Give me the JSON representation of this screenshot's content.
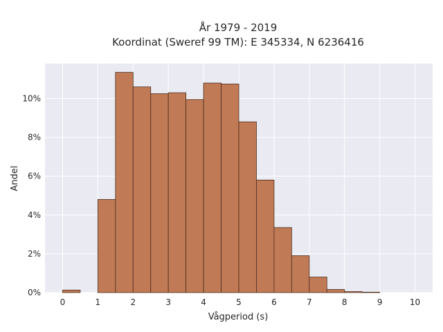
{
  "chart_data": {
    "type": "bar",
    "title_lines": [
      "År 1979 - 2019",
      "Koordinat (Sweref 99 TM): E 345334, N 6236416"
    ],
    "xlabel": "Vågperiod (s)",
    "ylabel": "Andel",
    "xlim": [
      -0.5,
      10.5
    ],
    "ylim": [
      0,
      11.8
    ],
    "x_ticks": [
      "0",
      "1",
      "2",
      "3",
      "4",
      "5",
      "6",
      "7",
      "8",
      "9",
      "10"
    ],
    "y_ticks": [
      "0%",
      "2%",
      "4%",
      "6%",
      "8%",
      "10%"
    ],
    "bin_width": 0.5,
    "bins": [
      {
        "start": 0.0,
        "value": 0.13
      },
      {
        "start": 0.5,
        "value": 0.0
      },
      {
        "start": 1.0,
        "value": 4.8
      },
      {
        "start": 1.5,
        "value": 11.35
      },
      {
        "start": 2.0,
        "value": 10.6
      },
      {
        "start": 2.5,
        "value": 10.25
      },
      {
        "start": 3.0,
        "value": 10.3
      },
      {
        "start": 3.5,
        "value": 9.95
      },
      {
        "start": 4.0,
        "value": 10.8
      },
      {
        "start": 4.5,
        "value": 10.75
      },
      {
        "start": 5.0,
        "value": 8.8
      },
      {
        "start": 5.5,
        "value": 5.8
      },
      {
        "start": 6.0,
        "value": 3.35
      },
      {
        "start": 6.5,
        "value": 1.9
      },
      {
        "start": 7.0,
        "value": 0.8
      },
      {
        "start": 7.5,
        "value": 0.16
      },
      {
        "start": 8.0,
        "value": 0.05
      },
      {
        "start": 8.5,
        "value": 0.02
      }
    ],
    "grid": true,
    "colors": {
      "bar_fill": "#c07b56",
      "bar_stroke": "#4a2a1a",
      "plot_bg": "#eaeaf2",
      "grid": "#ffffff"
    }
  }
}
